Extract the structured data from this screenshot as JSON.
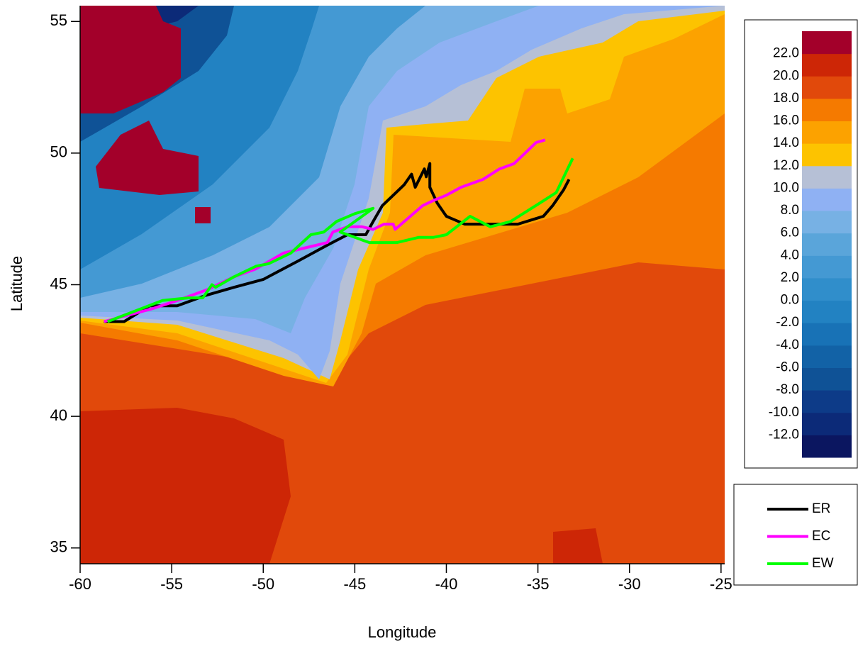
{
  "chart_data": {
    "type": "line",
    "x_label": "Longitude",
    "y_label": "Latitude",
    "xlim": [
      -60,
      -24.8
    ],
    "ylim": [
      34.4,
      55.6
    ],
    "xticks": [
      -60,
      -55,
      -50,
      -45,
      -40,
      -35,
      -30,
      -25
    ],
    "yticks": [
      35,
      40,
      45,
      50,
      55
    ],
    "legend": "right",
    "series": [
      {
        "name": "ER",
        "color": "#000000",
        "x": [
          -58.7,
          -57.6,
          -56.2,
          -54.7,
          -53.9,
          -53.1,
          -51.6,
          -50.0,
          -48.1,
          -46.5,
          -45.4,
          -44.4,
          -44.0,
          -43.5,
          -42.9,
          -42.3,
          -41.9,
          -41.7,
          -41.2,
          -41.1,
          -40.9,
          -40.9,
          -40.5,
          -40.0,
          -39.0,
          -37.2,
          -36.1,
          -34.7,
          -34.2,
          -33.6,
          -33.3
        ],
        "values": [
          43.6,
          43.6,
          44.2,
          44.2,
          44.4,
          44.6,
          44.9,
          45.2,
          45.9,
          46.5,
          46.9,
          46.9,
          47.4,
          48.0,
          48.4,
          48.8,
          49.2,
          48.7,
          49.4,
          49.1,
          49.6,
          48.7,
          48.1,
          47.6,
          47.3,
          47.3,
          47.3,
          47.6,
          48.0,
          48.6,
          49.0
        ]
      },
      {
        "name": "EC",
        "color": "#ff00ff",
        "x": [
          -58.7,
          -56.0,
          -54.7,
          -53.1,
          -51.6,
          -50.4,
          -48.9,
          -47.7,
          -47.1,
          -46.5,
          -46.2,
          -45.4,
          -44.6,
          -44.0,
          -43.4,
          -42.9,
          -42.8,
          -42.3,
          -41.3,
          -40.7,
          -40.0,
          -39.2,
          -38.0,
          -37.1,
          -36.3,
          -35.7,
          -35.1,
          -34.6
        ],
        "values": [
          43.6,
          44.1,
          44.4,
          44.8,
          45.3,
          45.6,
          46.2,
          46.4,
          46.5,
          46.6,
          47.0,
          47.2,
          47.2,
          47.1,
          47.3,
          47.3,
          47.1,
          47.4,
          48.0,
          48.2,
          48.4,
          48.7,
          49.0,
          49.4,
          49.6,
          50.0,
          50.4,
          50.5
        ]
      },
      {
        "name": "EW",
        "color": "#00ff00",
        "x": [
          -58.5,
          -57.0,
          -55.5,
          -54.1,
          -53.3,
          -52.8,
          -52.6,
          -51.6,
          -50.4,
          -49.7,
          -48.5,
          -47.4,
          -46.7,
          -46.0,
          -45.0,
          -44.0,
          -45.8,
          -44.2,
          -42.7,
          -41.5,
          -40.7,
          -40.0,
          -38.7,
          -37.6,
          -36.5,
          -34.9,
          -34.0,
          -33.1
        ],
        "values": [
          43.6,
          44.0,
          44.4,
          44.5,
          44.5,
          45.0,
          44.9,
          45.3,
          45.7,
          45.8,
          46.2,
          46.9,
          47.0,
          47.4,
          47.7,
          47.9,
          47.0,
          46.6,
          46.6,
          46.8,
          46.8,
          46.9,
          47.6,
          47.2,
          47.4,
          48.1,
          48.5,
          49.8
        ]
      }
    ],
    "colorbar": {
      "lim": [
        -14,
        24
      ],
      "colors": [
        "#0b1660",
        "#0c2a78",
        "#0d3b88",
        "#0f5296",
        "#1262a6",
        "#1872b6",
        "#2282c2",
        "#308ecb",
        "#4499d3",
        "#5aa5da",
        "#77b1e4",
        "#8fb1f3",
        "#b6c0d6",
        "#fdc300",
        "#fca200",
        "#f57a00",
        "#e1490b",
        "#cd2606",
        "#a3002a"
      ],
      "ticks": [
        {
          "value": 22,
          "label": "22.0"
        },
        {
          "value": 20,
          "label": "20.0"
        },
        {
          "value": 18,
          "label": "18.0"
        },
        {
          "value": 16,
          "label": "16.0"
        },
        {
          "value": 14,
          "label": "14.0"
        },
        {
          "value": 12,
          "label": "12.0"
        },
        {
          "value": 10,
          "label": "10.0"
        },
        {
          "value": 8,
          "label": "8.0"
        },
        {
          "value": 6,
          "label": "6.0"
        },
        {
          "value": 4,
          "label": "4.0"
        },
        {
          "value": 2,
          "label": "2.0"
        },
        {
          "value": 0,
          "label": "0.0"
        },
        {
          "value": -2,
          "label": "-2.0"
        },
        {
          "value": -4,
          "label": "-4.0"
        },
        {
          "value": -6,
          "label": "-6.0"
        },
        {
          "value": -8,
          "label": "-8.0"
        },
        {
          "value": -10,
          "label": "-10.0"
        },
        {
          "value": -12,
          "label": "-12.0"
        }
      ]
    }
  }
}
